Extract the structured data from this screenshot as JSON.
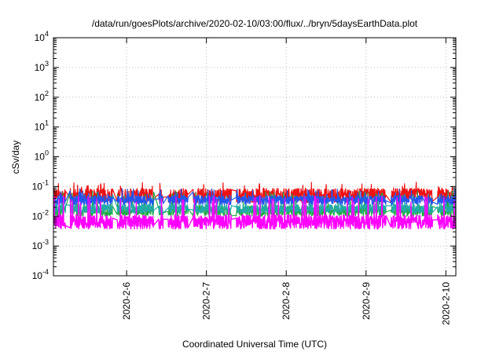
{
  "chart_data": {
    "type": "line",
    "title": "/data/run/goesPlots/archive/2020-02-10/03:00/flux/../bryn/5daysEarthData.plot",
    "xlabel": "Coordinated Universal Time (UTC)",
    "ylabel": "cSv/day",
    "yscale": "log",
    "ylim": [
      0.0001,
      10000
    ],
    "xlim": [
      "2020-02-05 02:00",
      "2020-02-10 03:00"
    ],
    "y_ticks": [
      {
        "value": 0.0001,
        "base": "10",
        "exp": "-4"
      },
      {
        "value": 0.001,
        "base": "10",
        "exp": "-3"
      },
      {
        "value": 0.01,
        "base": "10",
        "exp": "-2"
      },
      {
        "value": 0.1,
        "base": "10",
        "exp": "-1"
      },
      {
        "value": 1,
        "base": "10",
        "exp": "0"
      },
      {
        "value": 10,
        "base": "10",
        "exp": "1"
      },
      {
        "value": 100,
        "base": "10",
        "exp": "2"
      },
      {
        "value": 1000,
        "base": "10",
        "exp": "3"
      },
      {
        "value": 10000,
        "base": "10",
        "exp": "4"
      }
    ],
    "x_ticks": [
      {
        "value": "2020-02-06",
        "label": "2020-2-6"
      },
      {
        "value": "2020-02-07",
        "label": "2020-2-7"
      },
      {
        "value": "2020-02-08",
        "label": "2020-2-8"
      },
      {
        "value": "2020-02-09",
        "label": "2020-2-9"
      },
      {
        "value": "2020-02-10",
        "label": "2020-2-10"
      }
    ],
    "grid": true,
    "series": [
      {
        "color": "#ee1111",
        "base": 0.05,
        "spread": 0.55,
        "spike": 0.1
      },
      {
        "color": "#22aa44",
        "base": 0.015,
        "spread": 0.4,
        "spike": 0.05
      },
      {
        "color": "#22aaaa",
        "base": 0.018,
        "spread": 0.35,
        "spike": 0.04
      },
      {
        "color": "#2255ee",
        "base": 0.035,
        "spread": 0.35,
        "spike": 0.06
      },
      {
        "color": "#ff00ff",
        "base": 0.0065,
        "spread": 0.55,
        "spike": 0.035
      }
    ],
    "gaps": [
      {
        "start": "2020-02-05 05:40",
        "end": "2020-02-05 07:00"
      },
      {
        "start": "2020-02-05 19:45",
        "end": "2020-02-05 21:10"
      },
      {
        "start": "2020-02-06 08:10",
        "end": "2020-02-06 09:40"
      },
      {
        "start": "2020-02-06 11:00",
        "end": "2020-02-06 12:30"
      },
      {
        "start": "2020-02-06 18:30",
        "end": "2020-02-06 20:00"
      },
      {
        "start": "2020-02-07 07:30",
        "end": "2020-02-07 09:00"
      },
      {
        "start": "2020-02-09 06:00",
        "end": "2020-02-09 07:30"
      },
      {
        "start": "2020-02-09 20:00",
        "end": "2020-02-09 21:30"
      }
    ]
  }
}
